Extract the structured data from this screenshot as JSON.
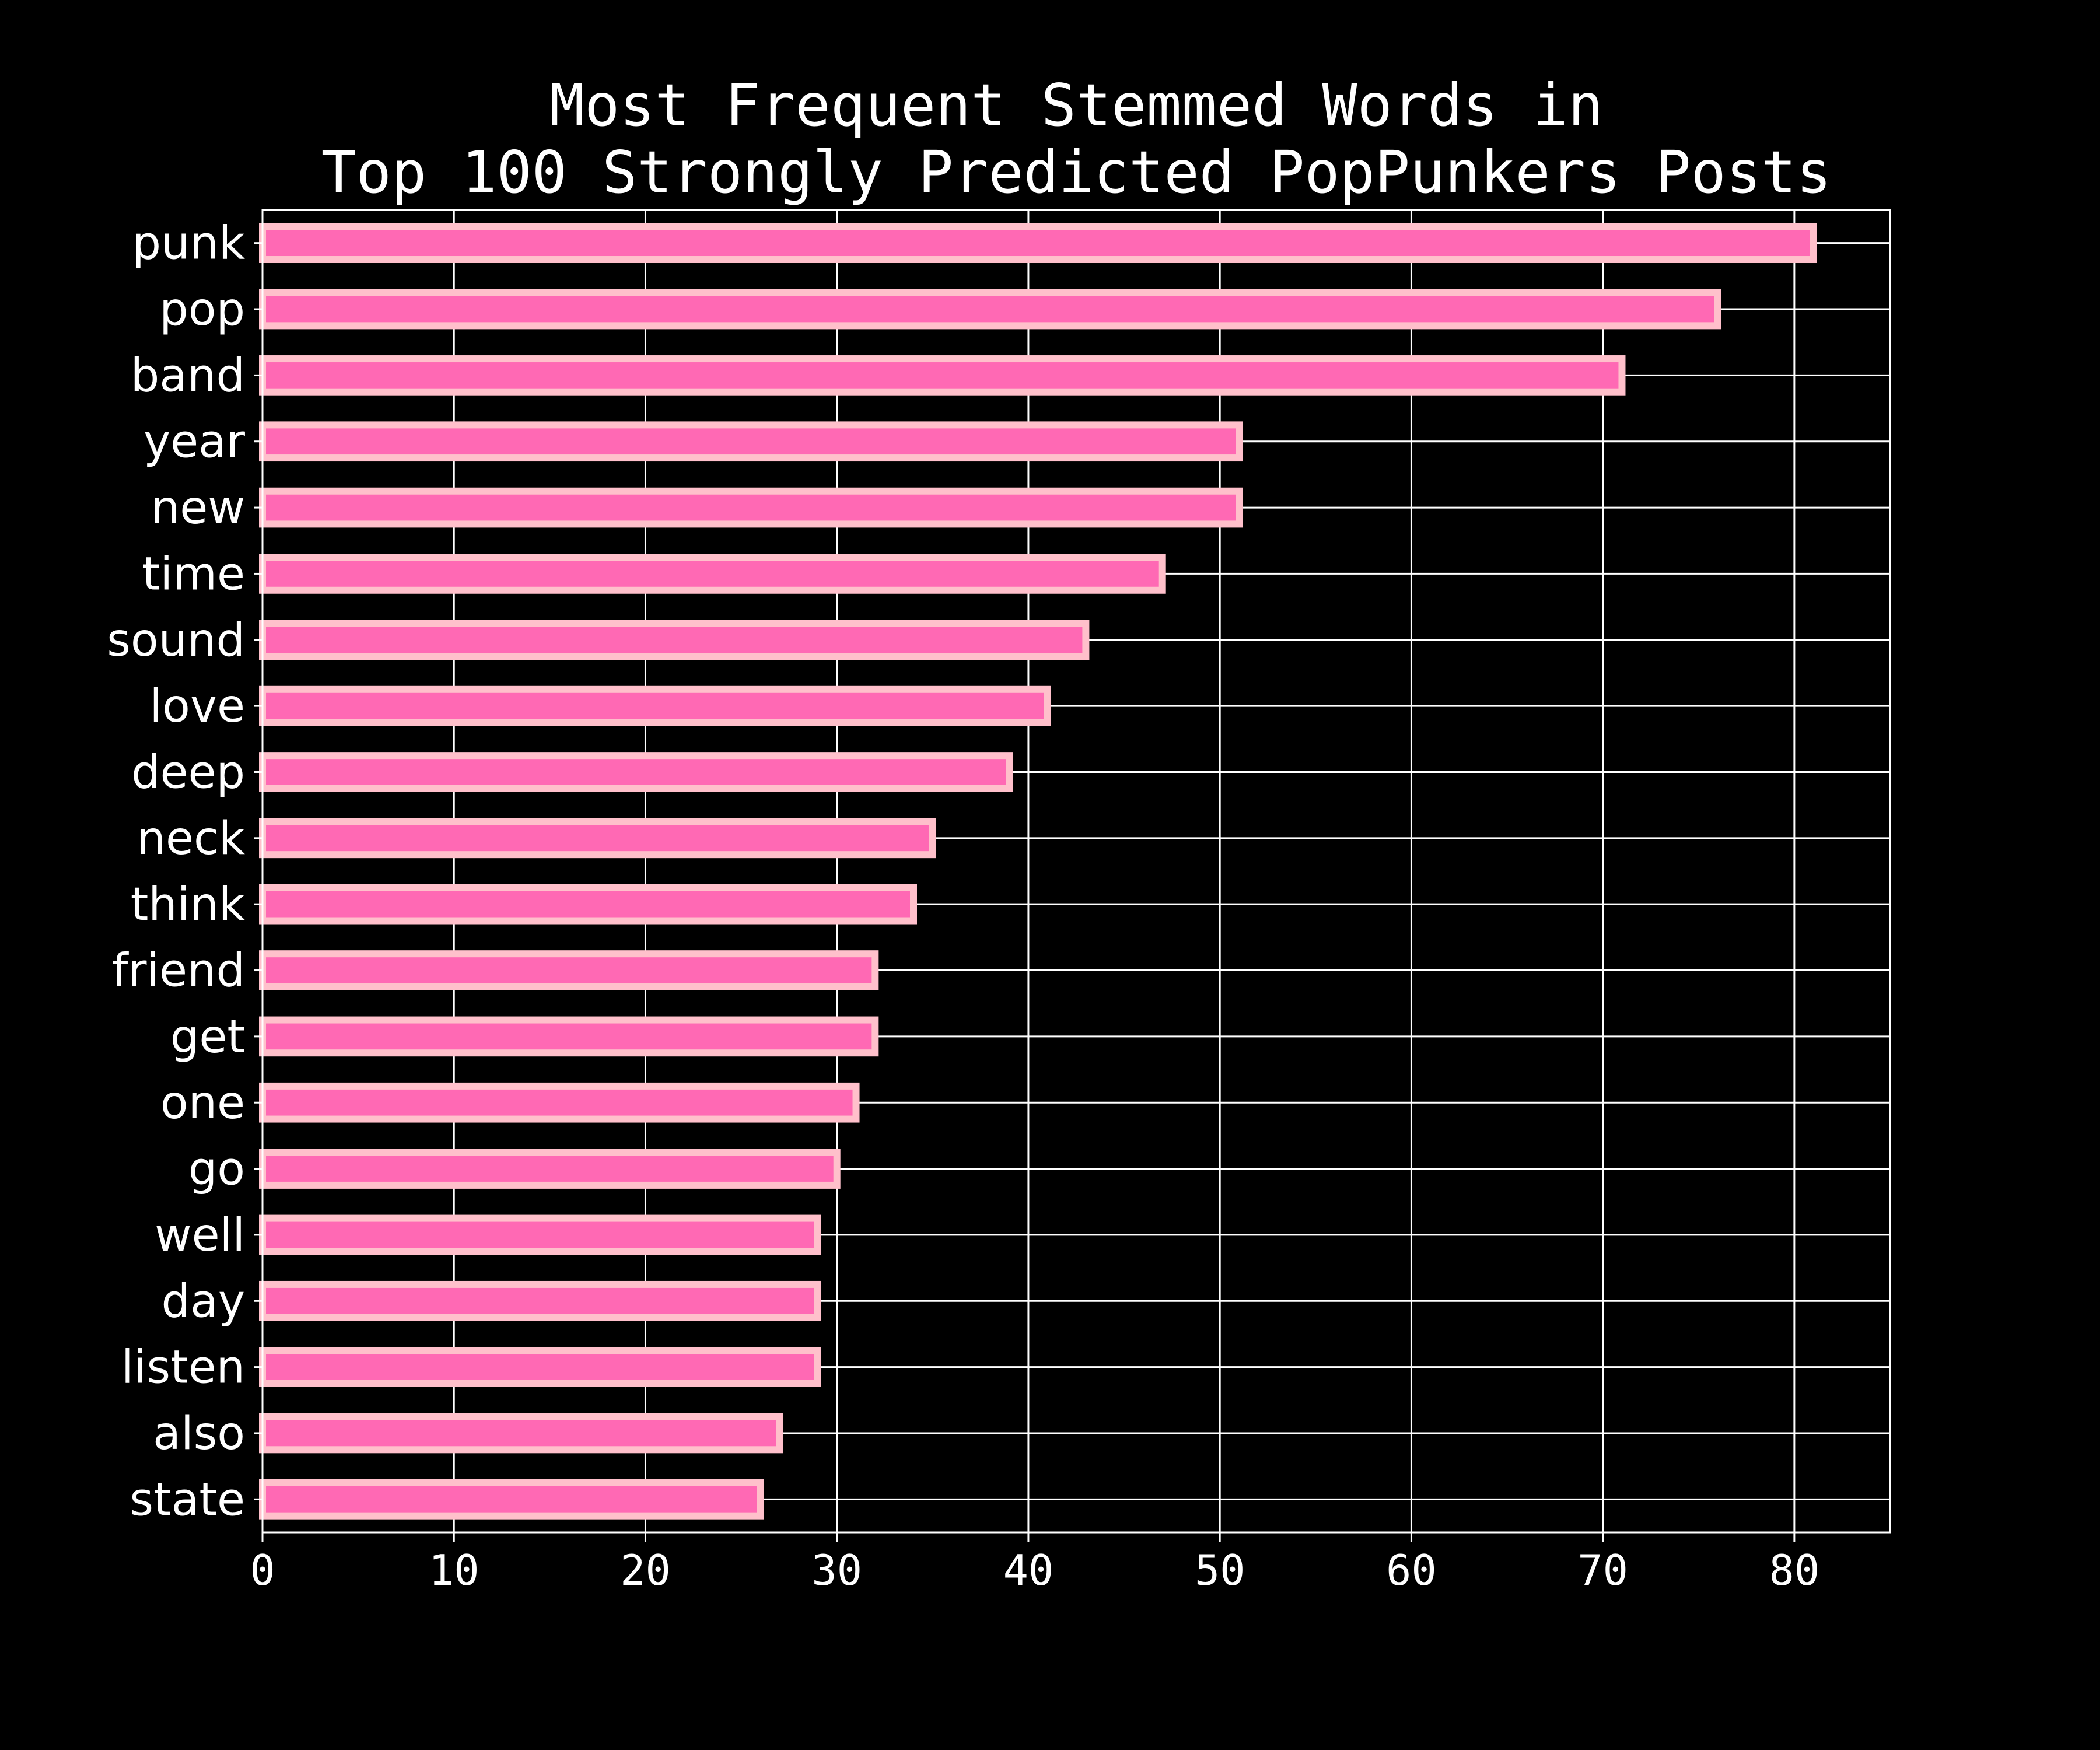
{
  "chart_data": {
    "type": "bar",
    "orientation": "horizontal",
    "title": [
      "Most Frequent Stemmed Words in",
      "Top 100 Strongly Predicted PopPunkers Posts"
    ],
    "xlabel": "",
    "ylabel": "",
    "categories": [
      "punk",
      "pop",
      "band",
      "year",
      "new",
      "time",
      "sound",
      "love",
      "deep",
      "neck",
      "think",
      "friend",
      "get",
      "one",
      "go",
      "well",
      "day",
      "listen",
      "also",
      "state"
    ],
    "values": [
      81,
      76,
      71,
      51,
      51,
      47,
      43,
      41,
      39,
      35,
      34,
      32,
      32,
      31,
      30,
      29,
      29,
      29,
      27,
      26
    ],
    "xlim": [
      0,
      85
    ],
    "xticks": [
      0,
      10,
      20,
      30,
      40,
      50,
      60,
      70,
      80
    ],
    "grid": true,
    "legend": "none",
    "colors": {
      "background": "#000000",
      "bar_fill": "#ff69b4",
      "bar_edge": "#ffc0cb",
      "grid": "#ffffff",
      "text": "#ffffff"
    }
  }
}
